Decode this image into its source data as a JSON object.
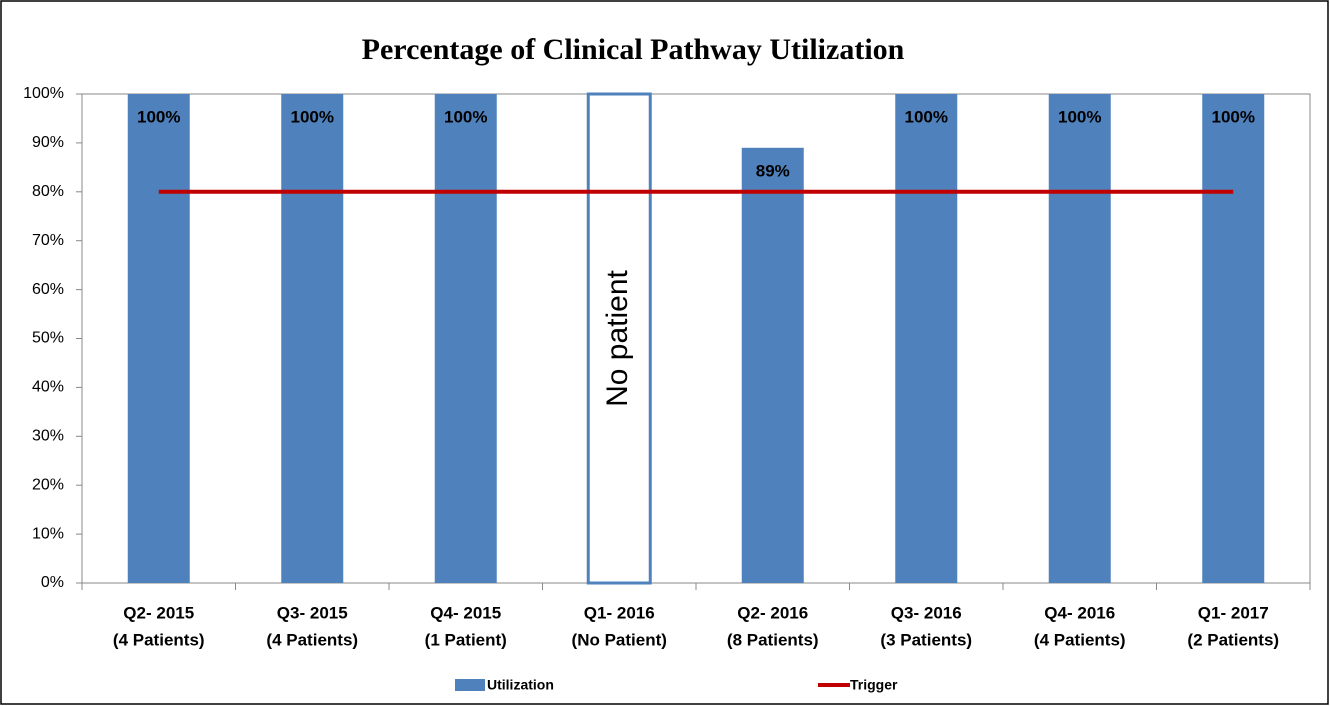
{
  "chart_data": {
    "type": "bar",
    "title": "Percentage of Clinical Pathway Utilization",
    "categories": [
      [
        "Q2- 2015",
        "(4 Patients)"
      ],
      [
        "Q3- 2015",
        "(4 Patients)"
      ],
      [
        "Q4- 2015",
        "(1 Patient)"
      ],
      [
        "Q1- 2016",
        "(No Patient)"
      ],
      [
        "Q2- 2016",
        "(8 Patients)"
      ],
      [
        "Q3- 2016",
        "(3 Patients)"
      ],
      [
        "Q4- 2016",
        "(4 Patients)"
      ],
      [
        "Q1- 2017",
        "(2 Patients)"
      ]
    ],
    "series": [
      {
        "name": "Utilization",
        "type": "bar",
        "color": "#4f81bd",
        "values": [
          100,
          100,
          100,
          null,
          89,
          100,
          100,
          100
        ],
        "value_labels": [
          "100%",
          "100%",
          "100%",
          null,
          "89%",
          "100%",
          "100%",
          "100%"
        ]
      },
      {
        "name": "Trigger",
        "type": "line",
        "color": "#c00000",
        "values": [
          80,
          80,
          80,
          80,
          80,
          80,
          80,
          80
        ]
      }
    ],
    "annotation": "No patient",
    "ylim": [
      0,
      100
    ],
    "yticks": [
      {
        "value": 0,
        "label": "0%"
      },
      {
        "value": 10,
        "label": "10%"
      },
      {
        "value": 20,
        "label": "20%"
      },
      {
        "value": 30,
        "label": "30%"
      },
      {
        "value": 40,
        "label": "40%"
      },
      {
        "value": 50,
        "label": "50%"
      },
      {
        "value": 60,
        "label": "60%"
      },
      {
        "value": 70,
        "label": "70%"
      },
      {
        "value": 80,
        "label": "80%"
      },
      {
        "value": 90,
        "label": "90%"
      },
      {
        "value": 100,
        "label": "100%"
      }
    ],
    "grid": false,
    "legend": "bottom"
  }
}
